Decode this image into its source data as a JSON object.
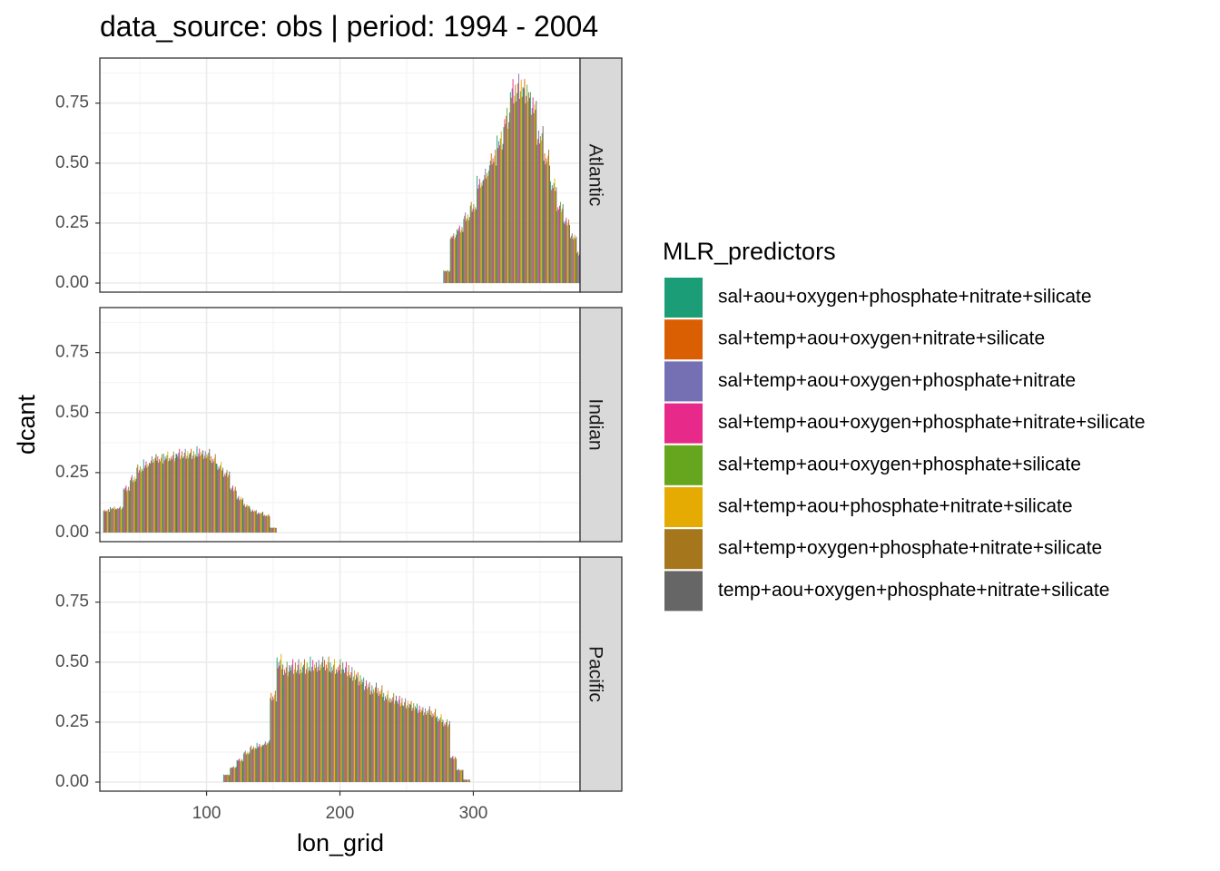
{
  "title": "data_source: obs | period: 1994 - 2004",
  "chart_data": {
    "type": "bar",
    "title": "data_source: obs | period: 1994 - 2004",
    "xlabel": "lon_grid",
    "ylabel": "dcant",
    "xlim": [
      20,
      380
    ],
    "ylim": [
      0,
      0.9
    ],
    "x_ticks": [
      100,
      200,
      300
    ],
    "x_tick_labels": [
      "100",
      "200",
      "300"
    ],
    "y_ticks": [
      0,
      0.25,
      0.5,
      0.75
    ],
    "y_tick_labels": [
      "0.00",
      "0.25",
      "0.50",
      "0.75"
    ],
    "grid": true,
    "legend_position": "right",
    "legend_title": "MLR_predictors",
    "series": [
      {
        "name": "sal+aou+oxygen+phosphate+nitrate+silicate",
        "color": "#1B9E77"
      },
      {
        "name": "sal+temp+aou+oxygen+nitrate+silicate",
        "color": "#D95F02"
      },
      {
        "name": "sal+temp+aou+oxygen+phosphate+nitrate",
        "color": "#7570B3"
      },
      {
        "name": "sal+temp+aou+oxygen+phosphate+nitrate+silicate",
        "color": "#E7298A"
      },
      {
        "name": "sal+temp+aou+oxygen+phosphate+silicate",
        "color": "#66A61E"
      },
      {
        "name": "sal+temp+aou+phosphate+nitrate+silicate",
        "color": "#E6AB02"
      },
      {
        "name": "sal+temp+oxygen+phosphate+nitrate+silicate",
        "color": "#A6761D"
      },
      {
        "name": "temp+aou+oxygen+phosphate+nitrate+silicate",
        "color": "#666666"
      }
    ],
    "facets": [
      {
        "name": "Atlantic",
        "x": [
          275,
          280,
          285,
          290,
          295,
          300,
          305,
          310,
          315,
          320,
          325,
          330,
          335,
          340,
          345,
          350,
          355,
          360,
          365,
          370,
          375,
          380
        ],
        "values": [
          0.0,
          0.05,
          0.19,
          0.22,
          0.27,
          0.31,
          0.41,
          0.45,
          0.51,
          0.58,
          0.67,
          0.78,
          0.8,
          0.78,
          0.73,
          0.6,
          0.51,
          0.4,
          0.31,
          0.25,
          0.19,
          0.12
        ]
      },
      {
        "name": "Indian",
        "x": [
          25,
          30,
          35,
          40,
          45,
          50,
          55,
          60,
          65,
          70,
          75,
          80,
          85,
          90,
          95,
          100,
          105,
          110,
          115,
          120,
          125,
          130,
          135,
          140,
          145,
          150
        ],
        "values": [
          0.09,
          0.1,
          0.1,
          0.18,
          0.22,
          0.26,
          0.28,
          0.3,
          0.3,
          0.31,
          0.31,
          0.32,
          0.32,
          0.32,
          0.33,
          0.32,
          0.3,
          0.27,
          0.24,
          0.18,
          0.14,
          0.11,
          0.09,
          0.08,
          0.07,
          0.02
        ]
      },
      {
        "name": "Pacific",
        "x": [
          110,
          115,
          120,
          125,
          130,
          135,
          140,
          145,
          150,
          155,
          160,
          165,
          170,
          175,
          180,
          185,
          190,
          195,
          200,
          205,
          210,
          215,
          220,
          225,
          230,
          235,
          240,
          245,
          250,
          255,
          260,
          265,
          270,
          275,
          280,
          285,
          290,
          295
        ],
        "values": [
          0.0,
          0.03,
          0.06,
          0.09,
          0.12,
          0.14,
          0.15,
          0.16,
          0.35,
          0.49,
          0.46,
          0.47,
          0.47,
          0.47,
          0.48,
          0.48,
          0.48,
          0.47,
          0.47,
          0.46,
          0.44,
          0.42,
          0.4,
          0.38,
          0.37,
          0.35,
          0.34,
          0.33,
          0.32,
          0.31,
          0.3,
          0.29,
          0.28,
          0.26,
          0.24,
          0.1,
          0.05,
          0.01
        ]
      }
    ]
  }
}
